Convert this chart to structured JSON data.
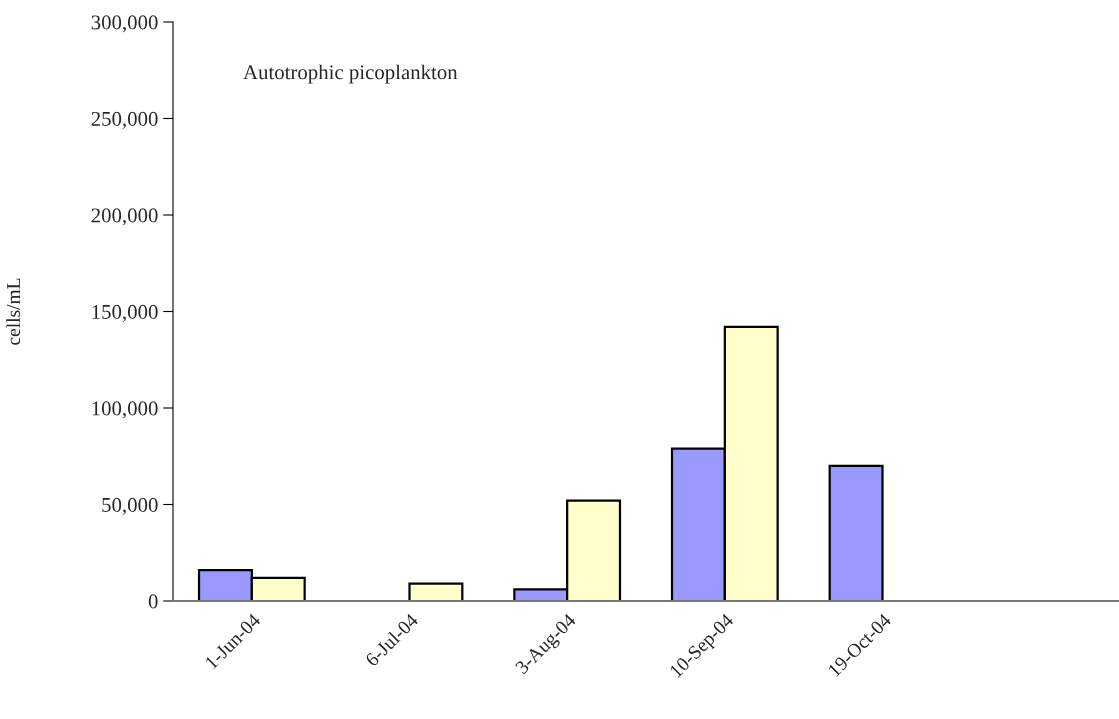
{
  "chart_data": {
    "type": "bar",
    "categories": [
      "1-Jun-04",
      "6-Jul-04",
      "3-Aug-04",
      "10-Sep-04",
      "19-Oct-04",
      null
    ],
    "series": [
      {
        "color": "#9999ff",
        "values": [
          16000,
          null,
          6000,
          79000,
          70000,
          null
        ]
      },
      {
        "color": "#ffffcc",
        "values": [
          12000,
          9000,
          52000,
          142000,
          null,
          null
        ]
      }
    ],
    "ylabel": "cells/mL",
    "annotations": [
      "Autotrophic picoplankton"
    ],
    "ylim": [
      0,
      300000
    ],
    "yticks": [
      0,
      {
        "value": 50000,
        "label": "50,000"
      },
      {
        "value": 100000,
        "label": "100,000"
      },
      {
        "value": 150000,
        "label": "150,000"
      },
      {
        "value": 200000,
        "label": "200,000"
      },
      {
        "value": 250000,
        "label": "250,000"
      },
      {
        "value": 300000,
        "label": "300,000"
      }
    ],
    "grid": false,
    "legend": false
  }
}
